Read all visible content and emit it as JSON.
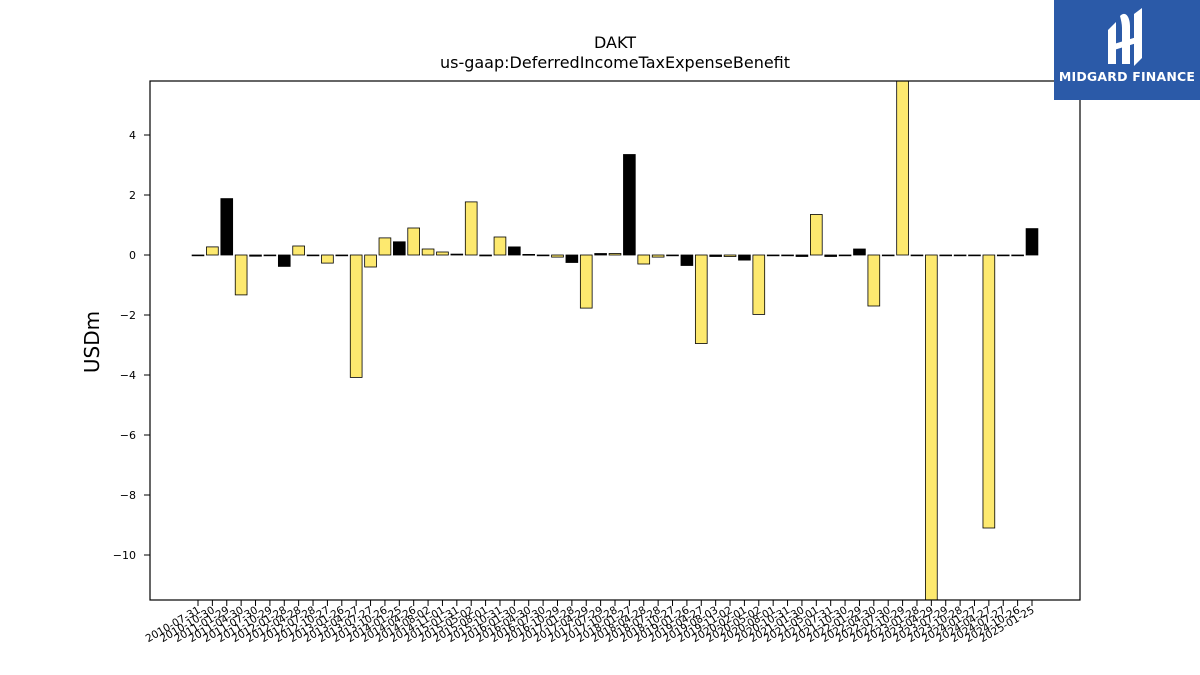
{
  "logo": {
    "text": "MIDGARD FINANCE",
    "background": "#2b5aa8"
  },
  "chart_data": {
    "type": "bar",
    "title": "DAKT",
    "subtitle": "us-gaap:DeferredIncomeTaxExpenseBenefit",
    "ylabel": "USDm",
    "xlabel": "",
    "ylim": [
      -11.5,
      5.8
    ],
    "yticks": [
      4,
      2,
      0,
      -2,
      -4,
      -6,
      -8,
      -10
    ],
    "grid": false,
    "colors": {
      "annual": "#000000",
      "quarterly": "#fde96f",
      "edge": "#000000"
    },
    "categories": [
      "2010-07-31",
      "2010-10-30",
      "2011-01-29",
      "2011-04-30",
      "2011-07-30",
      "2011-10-29",
      "2012-01-28",
      "2012-04-28",
      "2012-07-28",
      "2012-10-27",
      "2013-01-26",
      "2013-04-27",
      "2013-07-27",
      "2013-10-26",
      "2014-01-25",
      "2014-04-26",
      "2014-08-02",
      "2014-11-01",
      "2015-01-31",
      "2015-05-02",
      "2015-08-01",
      "2015-10-31",
      "2016-01-30",
      "2016-04-30",
      "2016-07-30",
      "2016-10-29",
      "2017-01-28",
      "2017-04-29",
      "2017-07-29",
      "2017-10-28",
      "2018-01-27",
      "2018-04-28",
      "2018-07-28",
      "2018-10-27",
      "2019-01-26",
      "2019-04-27",
      "2019-08-03",
      "2019-11-02",
      "2020-02-01",
      "2020-05-02",
      "2020-08-01",
      "2020-10-31",
      "2021-01-30",
      "2021-05-01",
      "2021-07-31",
      "2021-10-30",
      "2022-01-29",
      "2022-04-30",
      "2022-07-30",
      "2022-10-29",
      "2023-01-28",
      "2023-04-29",
      "2023-07-29",
      "2023-10-28",
      "2024-01-27",
      "2024-04-27",
      "2024-07-27",
      "2024-10-26",
      "2025-01-25"
    ],
    "values": [
      0.0,
      0.27,
      1.88,
      -1.33,
      -0.04,
      0.0,
      -0.38,
      0.3,
      0.0,
      -0.27,
      0.0,
      -4.08,
      -0.4,
      0.57,
      0.44,
      0.9,
      0.2,
      0.1,
      0.03,
      1.77,
      -0.03,
      0.6,
      0.27,
      0.02,
      0.0,
      -0.07,
      -0.25,
      -1.77,
      0.05,
      0.05,
      3.35,
      -0.3,
      -0.07,
      -0.02,
      -0.35,
      -2.95,
      -0.05,
      -0.05,
      -0.17,
      -1.98,
      0.0,
      0.0,
      -0.05,
      1.35,
      -0.05,
      0.0,
      0.2,
      -1.7,
      0.0,
      5.8,
      0.0,
      -11.5,
      0.0,
      0.0,
      0.0,
      -9.1,
      0.0,
      0.0,
      0.88
    ],
    "annual_flags": [
      0,
      0,
      1,
      0,
      1,
      0,
      1,
      0,
      0,
      0,
      0,
      0,
      0,
      0,
      1,
      0,
      0,
      0,
      1,
      0,
      1,
      0,
      1,
      0,
      0,
      0,
      1,
      0,
      1,
      0,
      1,
      0,
      0,
      0,
      1,
      0,
      1,
      0,
      1,
      0,
      0,
      0,
      1,
      0,
      1,
      0,
      1,
      0,
      0,
      0,
      0,
      0,
      0,
      0,
      0,
      0,
      0,
      0,
      1
    ]
  }
}
